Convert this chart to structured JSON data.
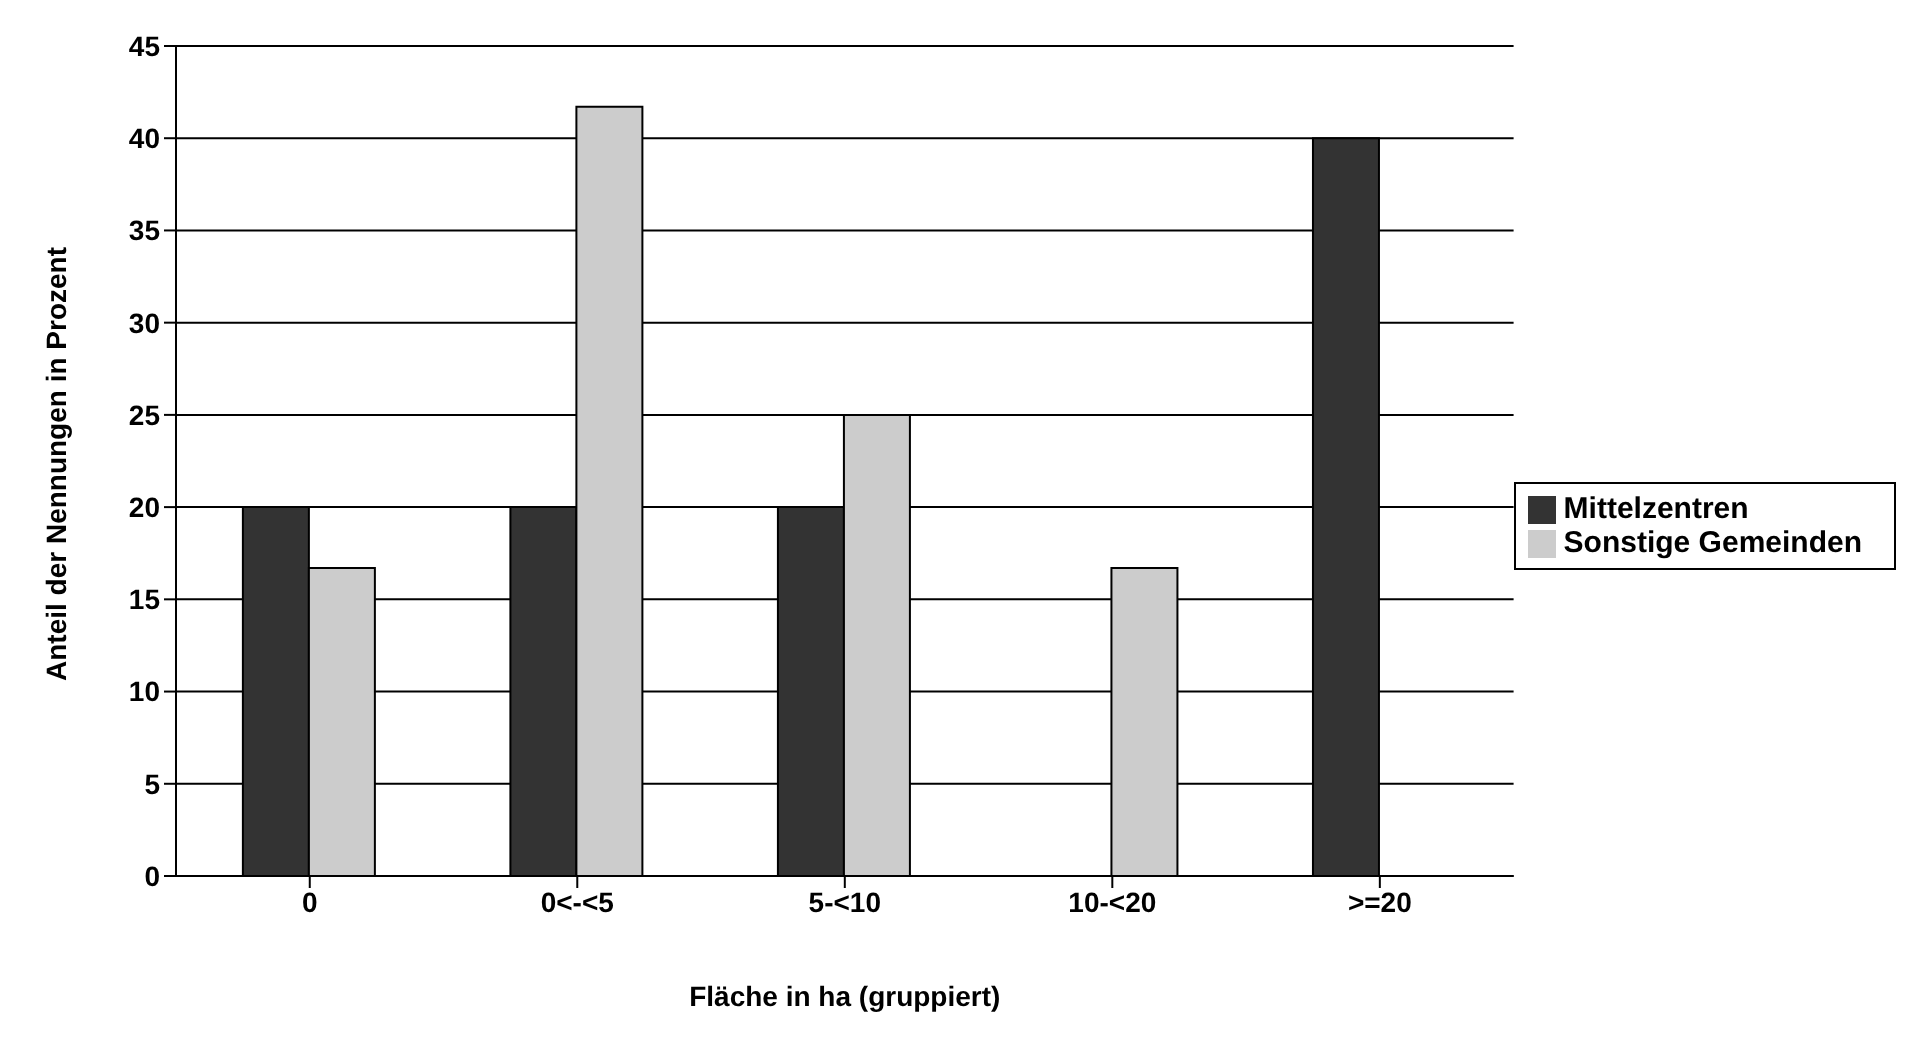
{
  "chart_data": {
    "type": "bar",
    "xlabel": "Fläche in ha (gruppiert)",
    "ylabel": "Anteil der Nennungen in Prozent",
    "categories": [
      "0",
      "0<-<5",
      "5-<10",
      "10-<20",
      ">=20"
    ],
    "series": [
      {
        "name": "Mittelzentren",
        "color": "#333333",
        "values": [
          20,
          20,
          20,
          0,
          40
        ]
      },
      {
        "name": "Sonstige Gemeinden",
        "color": "#cccccc",
        "values": [
          16.7,
          41.7,
          25,
          16.7,
          0
        ]
      }
    ],
    "ylim": [
      0,
      45
    ],
    "yticks": [
      0,
      5,
      10,
      15,
      20,
      25,
      30,
      35,
      40,
      45
    ],
    "grid": "y",
    "legend": "right"
  }
}
